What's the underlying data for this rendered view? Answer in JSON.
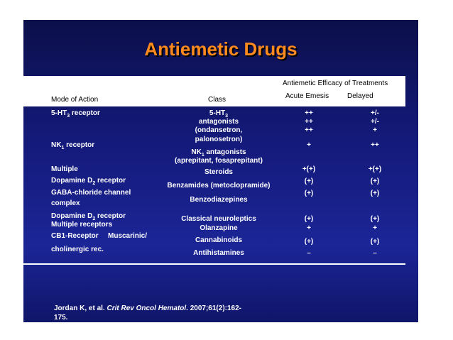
{
  "title": "Antiemetic Drugs",
  "table": {
    "group_header": "Antiemetic Efficacy of Treatments",
    "col_mode": "Mode of Action",
    "col_class": "Class",
    "col_acute": "Acute Emesis",
    "col_delayed": "Delayed",
    "mode": {
      "m1": "5-HT",
      "m1_sub": "3",
      "m1_rest": " receptor",
      "m2": "NK",
      "m2_sub": "1",
      "m2_rest": " receptor",
      "m3": "Multiple",
      "m4": "Dopamine D",
      "m4_sub": "2",
      "m4_rest": " receptor",
      "m5a": "GABA-chloride channel",
      "m5b": "complex",
      "m6": "Dopamine D",
      "m6_sub": "2",
      "m6_rest": " receptor",
      "m7": "Multiple receptors",
      "m8a": "CB1-Receptor",
      "m8b": "Muscarinic/",
      "m9": "cholinergic rec."
    },
    "cls": {
      "c1": "5-HT",
      "c1_sub": "3",
      "c1b": "antagonists",
      "c1c": "(ondansetron,",
      "c1d": "palonosetron)",
      "c2": "NK",
      "c2_sub": "1",
      "c2_rest": " antagonists",
      "c2b": "(aprepitant, fosaprepitant)",
      "c3": "Steroids",
      "c4": "Benzamides (metoclopramide)",
      "c5": "Benzodiazepines",
      "c6": "Classical neuroleptics",
      "c7": "Olanzapine",
      "c8": "Cannabinoids",
      "c9": "Antihistamines"
    },
    "acute": [
      "++",
      "++",
      "++",
      "+",
      "+(+)",
      "(+)",
      "(+)",
      "(+)",
      "+",
      "(+)",
      "–"
    ],
    "delayed": [
      "+/-",
      "+/-",
      "+",
      "++",
      "+(+)",
      "(+)",
      "(+)",
      "(+)",
      "+",
      "(+)",
      "–"
    ]
  },
  "citation": {
    "authors": "Jordan K, et al.",
    "journal": "Crit Rev Oncol Hematol",
    "ref1": ". 2007;61(2):162-",
    "ref2": "175."
  }
}
